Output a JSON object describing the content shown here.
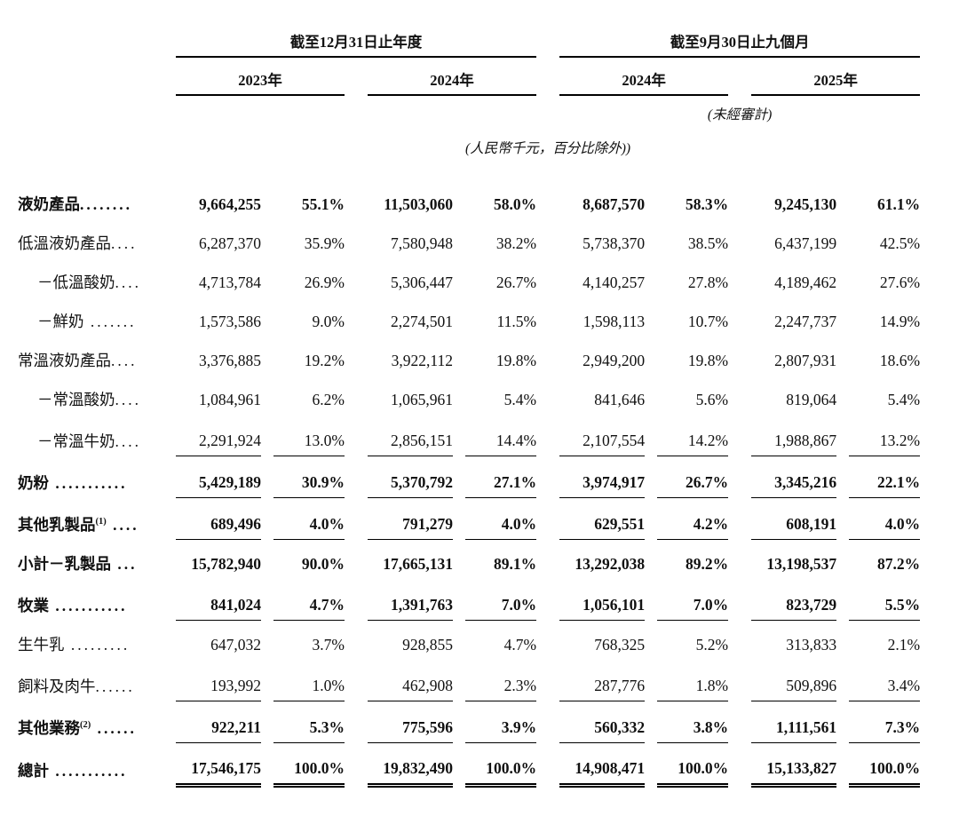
{
  "header": {
    "section1": "截至12月31日止年度",
    "section2": "截至9月30日止九個月",
    "years": [
      "2023年",
      "2024年",
      "2024年",
      "2025年"
    ],
    "unaudited_note": "(未經審計)",
    "currency_note": "(人民幣千元，百分比除外))"
  },
  "colors": {
    "background": "#ffffff",
    "text": "#111111",
    "rule_line": "#000000"
  },
  "rows": [
    {
      "label": "液奶產品",
      "sup": "",
      "dots": "........",
      "indent": false,
      "bold": true,
      "rule": "none",
      "values": [
        "9,664,255",
        "55.1%",
        "11,503,060",
        "58.0%",
        "8,687,570",
        "58.3%",
        "9,245,130",
        "61.1%"
      ]
    },
    {
      "label": "低溫液奶產品",
      "sup": "",
      "dots": "....",
      "indent": false,
      "bold": false,
      "rule": "none",
      "values": [
        "6,287,370",
        "35.9%",
        "7,580,948",
        "38.2%",
        "5,738,370",
        "38.5%",
        "6,437,199",
        "42.5%"
      ]
    },
    {
      "label": "－低溫酸奶",
      "sup": "",
      "dots": "....",
      "indent": true,
      "bold": false,
      "rule": "none",
      "values": [
        "4,713,784",
        "26.9%",
        "5,306,447",
        "26.7%",
        "4,140,257",
        "27.8%",
        "4,189,462",
        "27.6%"
      ]
    },
    {
      "label": "－鮮奶",
      "sup": "",
      "dots": " .......",
      "indent": true,
      "bold": false,
      "rule": "none",
      "values": [
        "1,573,586",
        "9.0%",
        "2,274,501",
        "11.5%",
        "1,598,113",
        "10.7%",
        "2,247,737",
        "14.9%"
      ]
    },
    {
      "label": "常溫液奶產品",
      "sup": "",
      "dots": "....",
      "indent": false,
      "bold": false,
      "rule": "none",
      "values": [
        "3,376,885",
        "19.2%",
        "3,922,112",
        "19.8%",
        "2,949,200",
        "19.8%",
        "2,807,931",
        "18.6%"
      ]
    },
    {
      "label": "－常溫酸奶",
      "sup": "",
      "dots": "....",
      "indent": true,
      "bold": false,
      "rule": "none",
      "values": [
        "1,084,961",
        "6.2%",
        "1,065,961",
        "5.4%",
        "841,646",
        "5.6%",
        "819,064",
        "5.4%"
      ]
    },
    {
      "label": "－常溫牛奶",
      "sup": "",
      "dots": "....",
      "indent": true,
      "bold": false,
      "rule": "single",
      "values": [
        "2,291,924",
        "13.0%",
        "2,856,151",
        "14.4%",
        "2,107,554",
        "14.2%",
        "1,988,867",
        "13.2%"
      ]
    },
    {
      "label": "奶粉",
      "sup": "",
      "dots": " ...........",
      "indent": false,
      "bold": true,
      "rule": "single",
      "values": [
        "5,429,189",
        "30.9%",
        "5,370,792",
        "27.1%",
        "3,974,917",
        "26.7%",
        "3,345,216",
        "22.1%"
      ]
    },
    {
      "label": "其他乳製品",
      "sup": "(1)",
      "dots": " ....",
      "indent": false,
      "bold": true,
      "rule": "single",
      "values": [
        "689,496",
        "4.0%",
        "791,279",
        "4.0%",
        "629,551",
        "4.2%",
        "608,191",
        "4.0%"
      ]
    },
    {
      "label": "小計－乳製品",
      "sup": "",
      "dots": " ...",
      "indent": false,
      "bold": true,
      "rule": "none",
      "values": [
        "15,782,940",
        "90.0%",
        "17,665,131",
        "89.1%",
        "13,292,038",
        "89.2%",
        "13,198,537",
        "87.2%"
      ]
    },
    {
      "label": "牧業",
      "sup": "",
      "dots": " ...........",
      "indent": false,
      "bold": true,
      "rule": "single",
      "values": [
        "841,024",
        "4.7%",
        "1,391,763",
        "7.0%",
        "1,056,101",
        "7.0%",
        "823,729",
        "5.5%"
      ]
    },
    {
      "label": "生牛乳",
      "sup": "",
      "dots": " .........",
      "indent": false,
      "bold": false,
      "rule": "none",
      "values": [
        "647,032",
        "3.7%",
        "928,855",
        "4.7%",
        "768,325",
        "5.2%",
        "313,833",
        "2.1%"
      ]
    },
    {
      "label": "飼料及肉牛",
      "sup": "",
      "dots": "......",
      "indent": false,
      "bold": false,
      "rule": "single",
      "values": [
        "193,992",
        "1.0%",
        "462,908",
        "2.3%",
        "287,776",
        "1.8%",
        "509,896",
        "3.4%"
      ]
    },
    {
      "label": "其他業務",
      "sup": "(2)",
      "dots": " ......",
      "indent": false,
      "bold": true,
      "rule": "single",
      "values": [
        "922,211",
        "5.3%",
        "775,596",
        "3.9%",
        "560,332",
        "3.8%",
        "1,111,561",
        "7.3%"
      ]
    },
    {
      "label": "總計",
      "sup": "",
      "dots": " ...........",
      "indent": false,
      "bold": true,
      "rule": "double",
      "values": [
        "17,546,175",
        "100.0%",
        "19,832,490",
        "100.0%",
        "14,908,471",
        "100.0%",
        "15,133,827",
        "100.0%"
      ]
    }
  ]
}
